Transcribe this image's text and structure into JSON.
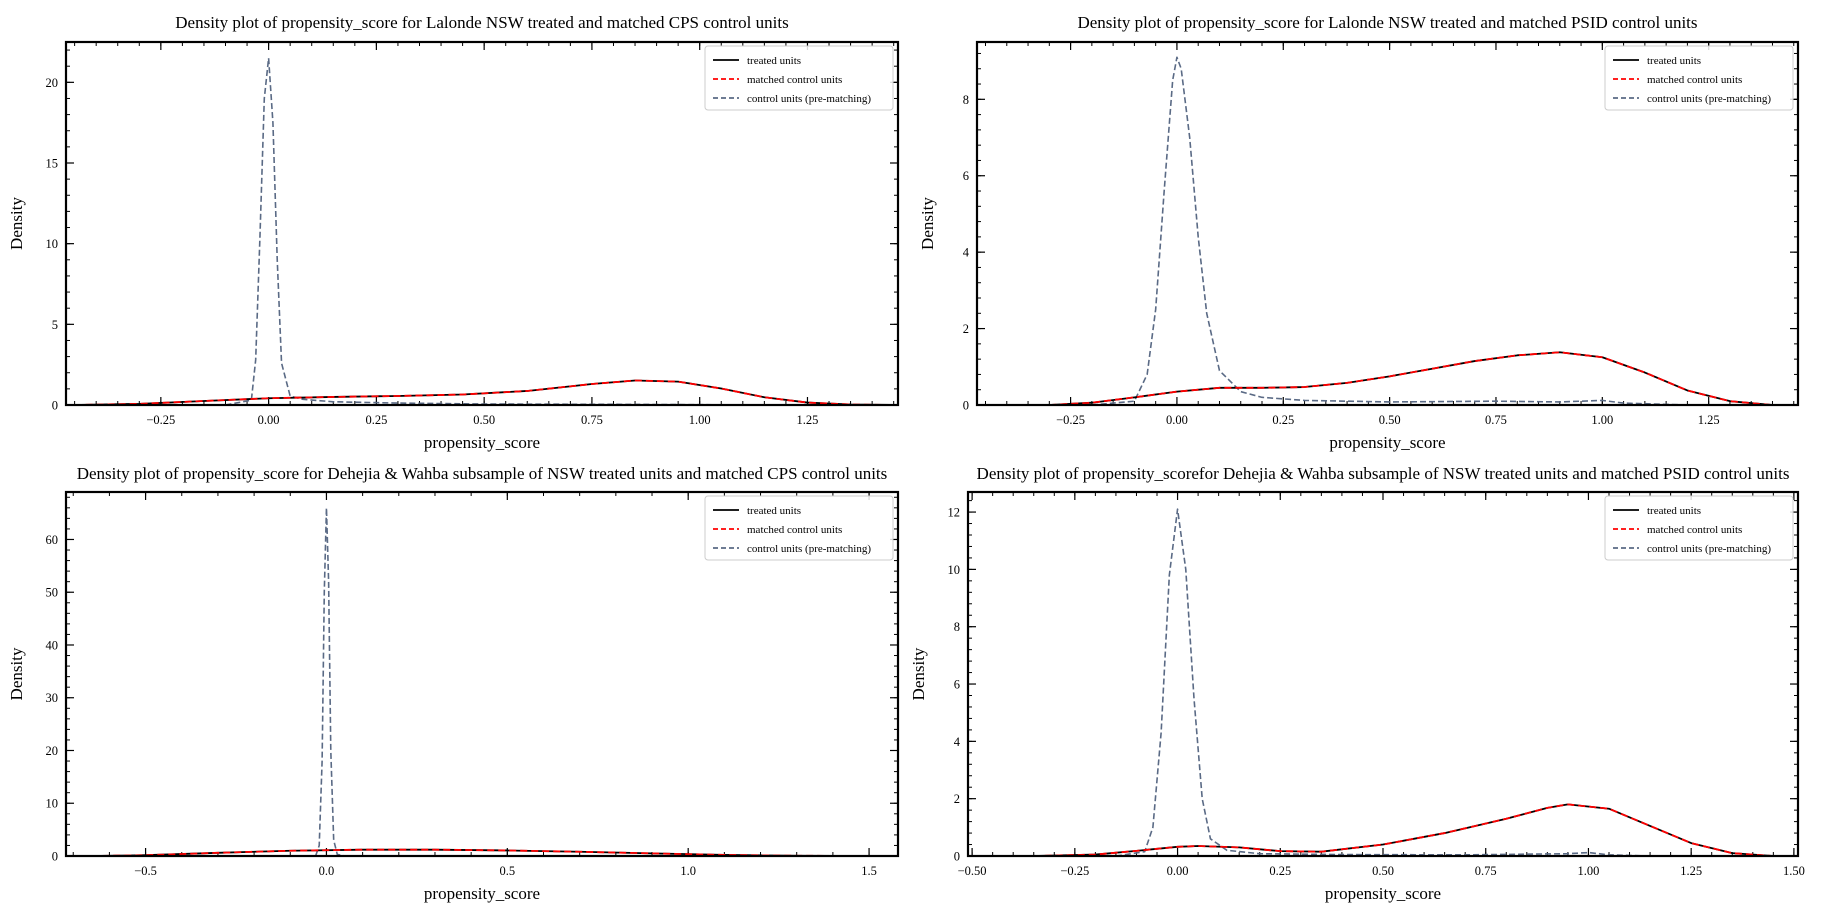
{
  "figure": {
    "legend_entries": [
      "treated units",
      "matched control units",
      "control units (pre-matching)"
    ],
    "colors": {
      "treated": "#000000",
      "matched": "#ff0000",
      "pre": "#5a6a85"
    }
  },
  "chart_data": [
    {
      "type": "line",
      "title": "Density plot of  propensity_score for Lalonde NSW treated and matched CPS control units",
      "xlabel": "propensity_score",
      "ylabel": "Density",
      "xlim": [
        -0.47,
        1.46
      ],
      "ylim": [
        0,
        22.5
      ],
      "xticks": [
        -0.25,
        0.0,
        0.25,
        0.5,
        0.75,
        1.0,
        1.25
      ],
      "xtick_labels": [
        "−0.25",
        "0.00",
        "0.25",
        "0.50",
        "0.75",
        "1.00",
        "1.25"
      ],
      "yticks": [
        0,
        5,
        10,
        15,
        20
      ],
      "ytick_labels": [
        "0",
        "5",
        "10",
        "15",
        "20"
      ],
      "legend_position": "upper right",
      "series": [
        {
          "name": "treated units",
          "style": "solid",
          "color": "#000000",
          "x": [
            -0.45,
            -0.3,
            -0.15,
            0.0,
            0.15,
            0.3,
            0.45,
            0.6,
            0.75,
            0.85,
            0.95,
            1.05,
            1.15,
            1.25,
            1.35,
            1.45
          ],
          "y": [
            0.0,
            0.07,
            0.25,
            0.42,
            0.5,
            0.56,
            0.65,
            0.87,
            1.3,
            1.52,
            1.45,
            1.02,
            0.48,
            0.15,
            0.03,
            0.0
          ]
        },
        {
          "name": "matched control units",
          "style": "dashed",
          "color": "#ff0000",
          "x": [
            -0.45,
            -0.3,
            -0.15,
            0.0,
            0.15,
            0.3,
            0.45,
            0.6,
            0.75,
            0.85,
            0.95,
            1.05,
            1.15,
            1.25,
            1.35,
            1.45
          ],
          "y": [
            0.0,
            0.07,
            0.25,
            0.42,
            0.5,
            0.56,
            0.65,
            0.87,
            1.3,
            1.52,
            1.45,
            1.02,
            0.48,
            0.15,
            0.03,
            0.0
          ]
        },
        {
          "name": "control units (pre-matching)",
          "style": "dashed",
          "color": "#5a6a85",
          "x": [
            -0.1,
            -0.04,
            -0.03,
            -0.02,
            -0.01,
            0.0,
            0.01,
            0.02,
            0.03,
            0.05,
            0.08,
            0.15,
            0.3,
            0.5,
            0.8,
            1.0,
            1.1,
            1.3
          ],
          "y": [
            0.0,
            0.3,
            2.8,
            10.5,
            19.0,
            21.5,
            17.5,
            9.0,
            2.6,
            0.55,
            0.35,
            0.2,
            0.12,
            0.06,
            0.04,
            0.02,
            0.0,
            0.0
          ]
        }
      ]
    },
    {
      "type": "line",
      "title": "Density plot of  propensity_score for Lalonde NSW treated and matched PSID control units",
      "xlabel": "propensity_score",
      "ylabel": "Density",
      "xlim": [
        -0.47,
        1.46
      ],
      "ylim": [
        0,
        9.5
      ],
      "xticks": [
        -0.25,
        0.0,
        0.25,
        0.5,
        0.75,
        1.0,
        1.25
      ],
      "xtick_labels": [
        "−0.25",
        "0.00",
        "0.25",
        "0.50",
        "0.75",
        "1.00",
        "1.25"
      ],
      "yticks": [
        0,
        2,
        4,
        6,
        8
      ],
      "ytick_labels": [
        "0",
        "2",
        "4",
        "6",
        "8"
      ],
      "legend_position": "upper right",
      "series": [
        {
          "name": "treated units",
          "style": "solid",
          "color": "#000000",
          "x": [
            -0.3,
            -0.2,
            -0.1,
            0.0,
            0.1,
            0.2,
            0.3,
            0.4,
            0.5,
            0.6,
            0.7,
            0.8,
            0.9,
            1.0,
            1.1,
            1.2,
            1.3,
            1.4
          ],
          "y": [
            0.0,
            0.06,
            0.2,
            0.35,
            0.45,
            0.45,
            0.47,
            0.58,
            0.75,
            0.95,
            1.15,
            1.3,
            1.38,
            1.25,
            0.85,
            0.38,
            0.1,
            0.0
          ]
        },
        {
          "name": "matched control units",
          "style": "dashed",
          "color": "#ff0000",
          "x": [
            -0.3,
            -0.2,
            -0.1,
            0.0,
            0.1,
            0.2,
            0.3,
            0.4,
            0.5,
            0.6,
            0.7,
            0.8,
            0.9,
            1.0,
            1.1,
            1.2,
            1.3,
            1.4
          ],
          "y": [
            0.0,
            0.06,
            0.2,
            0.35,
            0.45,
            0.45,
            0.47,
            0.58,
            0.75,
            0.95,
            1.15,
            1.3,
            1.38,
            1.25,
            0.85,
            0.38,
            0.1,
            0.0
          ]
        },
        {
          "name": "control units (pre-matching)",
          "style": "dashed",
          "color": "#5a6a85",
          "x": [
            -0.2,
            -0.1,
            -0.07,
            -0.05,
            -0.03,
            -0.01,
            0.0,
            0.01,
            0.03,
            0.05,
            0.07,
            0.1,
            0.15,
            0.2,
            0.3,
            0.5,
            0.75,
            0.9,
            1.0,
            1.05,
            1.2
          ],
          "y": [
            0.0,
            0.1,
            0.8,
            2.5,
            5.6,
            8.5,
            9.1,
            8.8,
            7.0,
            4.4,
            2.4,
            0.9,
            0.35,
            0.2,
            0.12,
            0.08,
            0.1,
            0.08,
            0.12,
            0.05,
            0.0
          ]
        }
      ]
    },
    {
      "type": "line",
      "title": "Density plot of propensity_score for Dehejia & Wahba subsample of NSW treated units and matched CPS control units",
      "xlabel": "propensity_score",
      "ylabel": "Density",
      "xlim": [
        -0.72,
        1.58
      ],
      "ylim": [
        0,
        69
      ],
      "xticks": [
        -0.5,
        0.0,
        0.5,
        1.0,
        1.5
      ],
      "xtick_labels": [
        "−0.5",
        "0.0",
        "0.5",
        "1.0",
        "1.5"
      ],
      "yticks": [
        0,
        10,
        20,
        30,
        40,
        50,
        60
      ],
      "ytick_labels": [
        "0",
        "10",
        "20",
        "30",
        "40",
        "50",
        "60"
      ],
      "legend_position": "upper right",
      "series": [
        {
          "name": "treated units",
          "style": "solid",
          "color": "#000000",
          "x": [
            -0.65,
            -0.5,
            -0.3,
            -0.1,
            0.1,
            0.3,
            0.5,
            0.7,
            0.9,
            1.0,
            1.1,
            1.3,
            1.5
          ],
          "y": [
            0.0,
            0.15,
            0.6,
            1.0,
            1.2,
            1.2,
            1.05,
            0.8,
            0.5,
            0.35,
            0.2,
            0.05,
            0.0
          ]
        },
        {
          "name": "matched control units",
          "style": "dashed",
          "color": "#ff0000",
          "x": [
            -0.65,
            -0.5,
            -0.3,
            -0.1,
            0.1,
            0.3,
            0.5,
            0.7,
            0.9,
            1.0,
            1.1,
            1.3,
            1.5
          ],
          "y": [
            0.0,
            0.15,
            0.6,
            1.0,
            1.2,
            1.2,
            1.05,
            0.8,
            0.5,
            0.35,
            0.2,
            0.05,
            0.0
          ]
        },
        {
          "name": "control units (pre-matching)",
          "style": "dashed",
          "color": "#5a6a85",
          "x": [
            -0.03,
            -0.02,
            -0.012,
            -0.006,
            0.0,
            0.006,
            0.012,
            0.02,
            0.03,
            0.05
          ],
          "y": [
            0.0,
            2.0,
            18.0,
            50.0,
            66.0,
            52.0,
            20.0,
            3.0,
            0.3,
            0.0
          ]
        }
      ]
    },
    {
      "type": "line",
      "title": "Density plot of propensity_scorefor Dehejia & Wahba subsample of NSW treated units and matched PSID control units",
      "xlabel": "propensity_score",
      "ylabel": "Density",
      "xlim": [
        -0.51,
        1.51
      ],
      "ylim": [
        0,
        12.7
      ],
      "xticks": [
        -0.5,
        -0.25,
        0.0,
        0.25,
        0.5,
        0.75,
        1.0,
        1.25,
        1.5
      ],
      "xtick_labels": [
        "−0.50",
        "−0.25",
        "0.00",
        "0.25",
        "0.50",
        "0.75",
        "1.00",
        "1.25",
        "1.50"
      ],
      "yticks": [
        0,
        2,
        4,
        6,
        8,
        10,
        12
      ],
      "ytick_labels": [
        "0",
        "2",
        "4",
        "6",
        "8",
        "10",
        "12"
      ],
      "legend_position": "upper right",
      "series": [
        {
          "name": "treated units",
          "style": "solid",
          "color": "#000000",
          "x": [
            -0.35,
            -0.2,
            -0.1,
            0.0,
            0.05,
            0.15,
            0.25,
            0.35,
            0.5,
            0.65,
            0.8,
            0.9,
            0.95,
            1.05,
            1.15,
            1.25,
            1.35,
            1.45
          ],
          "y": [
            0.0,
            0.05,
            0.18,
            0.32,
            0.35,
            0.3,
            0.17,
            0.15,
            0.4,
            0.8,
            1.3,
            1.68,
            1.8,
            1.65,
            1.05,
            0.45,
            0.1,
            0.0
          ]
        },
        {
          "name": "matched control units",
          "style": "dashed",
          "color": "#ff0000",
          "x": [
            -0.35,
            -0.2,
            -0.1,
            0.0,
            0.05,
            0.15,
            0.25,
            0.35,
            0.5,
            0.65,
            0.8,
            0.9,
            0.95,
            1.05,
            1.15,
            1.25,
            1.35,
            1.45
          ],
          "y": [
            0.0,
            0.05,
            0.18,
            0.32,
            0.35,
            0.3,
            0.17,
            0.15,
            0.4,
            0.8,
            1.3,
            1.68,
            1.8,
            1.65,
            1.05,
            0.45,
            0.1,
            0.0
          ]
        },
        {
          "name": "control units (pre-matching)",
          "style": "dashed",
          "color": "#5a6a85",
          "x": [
            -0.15,
            -0.08,
            -0.06,
            -0.04,
            -0.02,
            0.0,
            0.02,
            0.04,
            0.06,
            0.08,
            0.12,
            0.2,
            0.4,
            0.7,
            0.95,
            1.0,
            1.05,
            1.15
          ],
          "y": [
            0.0,
            0.15,
            1.0,
            4.3,
            9.8,
            12.1,
            10.0,
            5.5,
            2.0,
            0.6,
            0.2,
            0.08,
            0.05,
            0.04,
            0.08,
            0.12,
            0.04,
            0.0
          ]
        }
      ]
    }
  ]
}
